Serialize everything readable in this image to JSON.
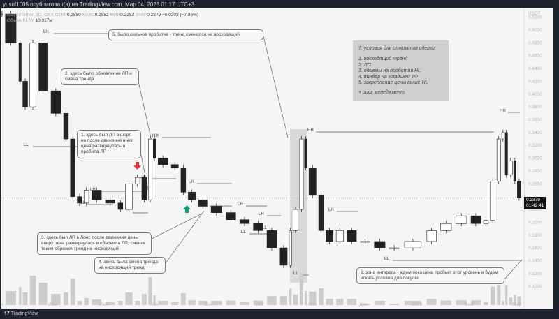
{
  "header": {
    "published": "yusuf1005 опубликовал(а) на TradingView.com, Мар 04, 2023 01:17 UTC+3"
  },
  "legend": {
    "symbol": "Klaytn/Tether, 1D, OKX",
    "o_label": "ОТКР",
    "o": "0.2580",
    "h_label": "МАКС",
    "h": "0.2582",
    "l_label": "МИН",
    "l": "0.2253",
    "c_label": "ЗАКР",
    "c": "0.2379",
    "change": "−0.0203 (−7.86%)",
    "vol_label": "Объем",
    "vol_sym": "KLAY",
    "vol": "10.317M"
  },
  "price_tag": {
    "price": "0.2379",
    "countdown": "01:42:41"
  },
  "footer": {
    "brand": "TradingView"
  },
  "colors": {
    "up": "#222222",
    "down": "#222222",
    "bg": "#f5f5f6",
    "frame": "#1e222d",
    "arrow_down": "#e0353b",
    "arrow_up": "#159b7a",
    "zone": "#d9d9db"
  },
  "annotations": {
    "n1": "1. здесь был ЛП в шорт, но после движения вниз цена развернулась и пробила ЛП",
    "n2": "2. здесь было обновление ЛП и смена тренда",
    "n3": "3. здесь был ЛП в Лонг, после движения цены вверх цена развернулась и обновила ЛП, сменив таким образом тренд на нисходящий",
    "n4": "4. здесь была смена тренда на нисходящий тренд",
    "n5": "5. было сильное пробитие - тренд сменился на восходящий",
    "n6": "6. зона интереса - ждем пока цена пробьет этот уровень и будем искать условия для покупки",
    "n7": {
      "title": "7. условия для открытия сделки:",
      "items": [
        "1. восходящий тренд",
        "2. ЛП",
        "3. объемы на пробитии HL",
        "4. пинбар на младшем ТФ",
        "5. закрепление цены выше HL"
      ],
      "extra": "+ риск менеджмент"
    }
  },
  "structure_labels": [
    "LH",
    "LL",
    "HH",
    "LH",
    "LL",
    "LL",
    "LH",
    "LH",
    "LL",
    "LH",
    "LH",
    "LL",
    "LL",
    "LL",
    "HH",
    "LH",
    "LL",
    "HH"
  ],
  "chart_data": {
    "type": "candlestick",
    "xlabel": "",
    "ylabel": "",
    "y_unit": "USDT",
    "ylim": [
      0.09,
      0.53
    ],
    "y_ticks": [
      "0.5200",
      "0.5000",
      "0.4800",
      "0.4600",
      "0.4400",
      "0.4200",
      "0.4000",
      "0.3800",
      "0.3600",
      "0.3400",
      "0.3200",
      "0.3000",
      "0.2800",
      "0.2600",
      "0.2200",
      "0.2000",
      "0.1800",
      "0.1600",
      "0.1400",
      "0.1200",
      "0.1000"
    ],
    "x_ticks": [
      "Июн",
      "Июл",
      "Авг",
      "Сен",
      "Окт",
      "Ноя",
      "Дек",
      "2023",
      "Фев",
      "Мар"
    ],
    "x_tick_dates": [
      "2022-06-01",
      "2022-07-01",
      "2022-08-01",
      "2022-09-01",
      "2022-10-01",
      "2022-11-01",
      "2022-12-01",
      "2023-01-01",
      "2023-02-01",
      "2023-03-01"
    ],
    "grid": false,
    "dates": [
      "2022-05-03",
      "2022-05-12",
      "2022-05-14",
      "2022-05-18",
      "2022-05-23",
      "2022-05-30",
      "2022-06-07",
      "2022-06-11",
      "2022-06-15",
      "2022-06-19",
      "2022-06-23",
      "2022-07-01",
      "2022-07-09",
      "2022-07-13",
      "2022-07-19",
      "2022-07-23",
      "2022-07-27",
      "2022-07-30",
      "2022-08-01",
      "2022-08-09",
      "2022-08-15",
      "2022-08-19",
      "2022-08-25",
      "2022-09-01",
      "2022-09-10",
      "2022-09-18",
      "2022-09-26",
      "2022-10-04",
      "2022-10-12",
      "2022-10-18",
      "2022-10-20",
      "2022-10-24",
      "2022-10-27",
      "2022-10-29",
      "2022-11-04",
      "2022-11-08",
      "2022-11-14",
      "2022-11-20",
      "2022-11-28",
      "2022-12-06",
      "2022-12-15",
      "2022-12-23",
      "2023-01-06",
      "2023-01-14",
      "2023-01-23",
      "2023-02-01",
      "2023-02-09",
      "2023-02-13",
      "2023-02-17",
      "2023-02-20",
      "2023-02-22",
      "2023-02-24",
      "2023-02-27",
      "2023-03-01",
      "2023-03-04"
    ],
    "close": [
      0.525,
      0.48,
      0.42,
      0.38,
      0.48,
      0.405,
      0.37,
      0.33,
      0.24,
      0.23,
      0.25,
      0.235,
      0.23,
      0.22,
      0.26,
      0.27,
      0.235,
      0.33,
      0.3,
      0.29,
      0.285,
      0.247,
      0.235,
      0.225,
      0.215,
      0.204,
      0.198,
      0.187,
      0.16,
      0.133,
      0.187,
      0.22,
      0.33,
      0.285,
      0.242,
      0.187,
      0.17,
      0.187,
      0.17,
      0.17,
      0.16,
      0.16,
      0.17,
      0.187,
      0.198,
      0.21,
      0.198,
      0.203,
      0.264,
      0.33,
      0.34,
      0.274,
      0.296,
      0.264,
      0.238
    ],
    "last_price": 0.2379
  }
}
